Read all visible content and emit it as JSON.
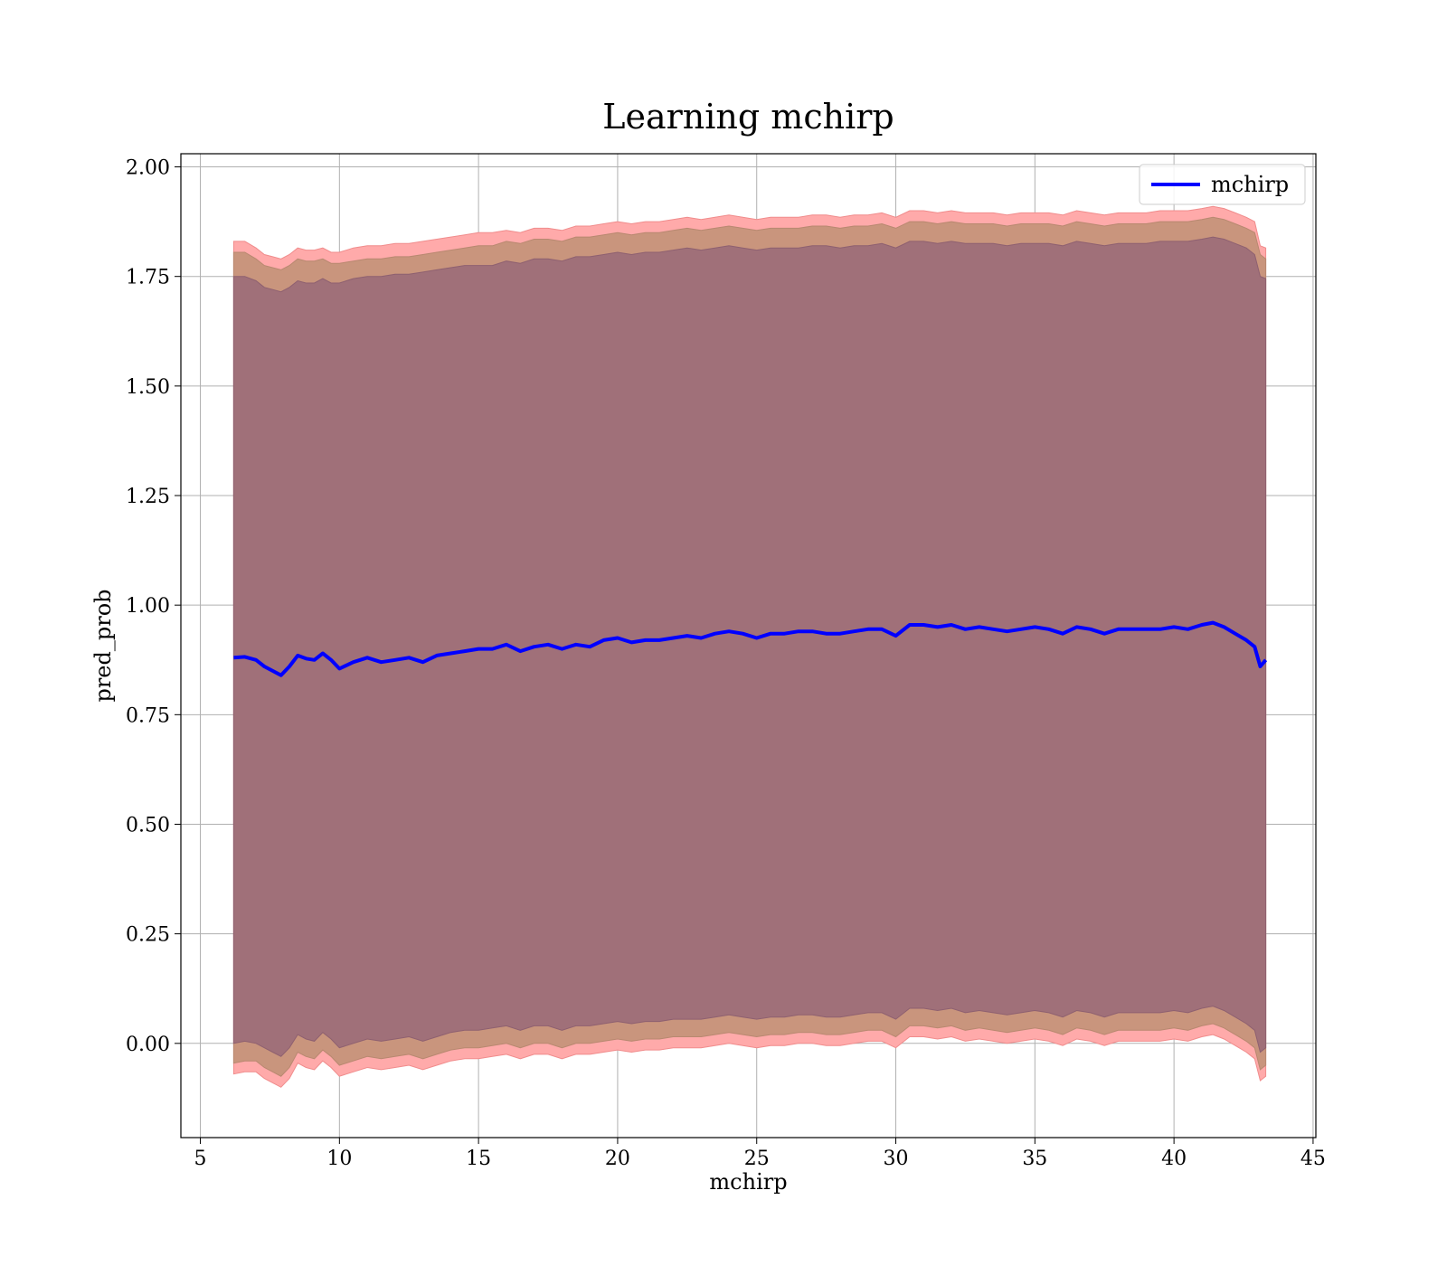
{
  "chart_data": {
    "type": "line",
    "title": "Learning mchirp",
    "xlabel": "mchirp",
    "ylabel": "pred_prob",
    "xlim": [
      4.3,
      45.1
    ],
    "ylim": [
      -0.215,
      2.03
    ],
    "xticks": [
      5,
      10,
      15,
      20,
      25,
      30,
      35,
      40,
      45
    ],
    "yticks": [
      0.0,
      0.25,
      0.5,
      0.75,
      1.0,
      1.25,
      1.5,
      1.75,
      2.0
    ],
    "ytick_labels": [
      "0.00",
      "0.25",
      "0.50",
      "0.75",
      "1.00",
      "1.25",
      "1.50",
      "1.75",
      "2.00"
    ],
    "grid": true,
    "legend": {
      "placement": "top-right",
      "entries": [
        "mchirp"
      ]
    },
    "series": [
      {
        "name": "mchirp",
        "color": "#0000ff",
        "x": [
          6.2,
          6.6,
          7.0,
          7.3,
          7.6,
          7.9,
          8.2,
          8.5,
          8.8,
          9.1,
          9.4,
          9.7,
          10.0,
          10.5,
          11.0,
          11.5,
          12.0,
          12.5,
          13.0,
          13.5,
          14.0,
          14.5,
          15.0,
          15.5,
          16.0,
          16.5,
          17.0,
          17.5,
          18.0,
          18.5,
          19.0,
          19.5,
          20.0,
          20.5,
          21.0,
          21.5,
          22.0,
          22.5,
          23.0,
          23.5,
          24.0,
          24.5,
          25.0,
          25.5,
          26.0,
          26.5,
          27.0,
          27.5,
          28.0,
          28.5,
          29.0,
          29.5,
          30.0,
          30.5,
          31.0,
          31.5,
          32.0,
          32.5,
          33.0,
          33.5,
          34.0,
          34.5,
          35.0,
          35.5,
          36.0,
          36.5,
          37.0,
          37.5,
          38.0,
          38.5,
          39.0,
          39.5,
          40.0,
          40.5,
          41.0,
          41.4,
          41.8,
          42.2,
          42.6,
          42.9,
          43.1,
          43.3
        ],
        "mean": [
          0.88,
          0.882,
          0.875,
          0.86,
          0.85,
          0.84,
          0.86,
          0.885,
          0.878,
          0.875,
          0.89,
          0.875,
          0.855,
          0.87,
          0.88,
          0.87,
          0.875,
          0.88,
          0.87,
          0.885,
          0.89,
          0.895,
          0.9,
          0.9,
          0.91,
          0.895,
          0.905,
          0.91,
          0.9,
          0.91,
          0.905,
          0.92,
          0.925,
          0.915,
          0.92,
          0.92,
          0.925,
          0.93,
          0.925,
          0.935,
          0.94,
          0.935,
          0.925,
          0.935,
          0.935,
          0.94,
          0.94,
          0.935,
          0.935,
          0.94,
          0.945,
          0.945,
          0.93,
          0.955,
          0.955,
          0.95,
          0.955,
          0.945,
          0.95,
          0.945,
          0.94,
          0.945,
          0.95,
          0.945,
          0.935,
          0.95,
          0.945,
          0.935,
          0.945,
          0.945,
          0.945,
          0.945,
          0.95,
          0.945,
          0.955,
          0.96,
          0.95,
          0.935,
          0.92,
          0.905,
          0.86,
          0.875
        ],
        "band_inner_upper": [
          1.805,
          1.805,
          1.79,
          1.775,
          1.77,
          1.765,
          1.775,
          1.79,
          1.785,
          1.785,
          1.79,
          1.78,
          1.78,
          1.785,
          1.79,
          1.79,
          1.795,
          1.795,
          1.8,
          1.805,
          1.81,
          1.815,
          1.82,
          1.82,
          1.83,
          1.825,
          1.835,
          1.835,
          1.83,
          1.84,
          1.84,
          1.845,
          1.85,
          1.845,
          1.85,
          1.85,
          1.855,
          1.86,
          1.855,
          1.86,
          1.865,
          1.86,
          1.855,
          1.86,
          1.86,
          1.86,
          1.865,
          1.865,
          1.86,
          1.865,
          1.865,
          1.87,
          1.86,
          1.875,
          1.875,
          1.87,
          1.875,
          1.87,
          1.87,
          1.87,
          1.865,
          1.87,
          1.87,
          1.87,
          1.865,
          1.875,
          1.87,
          1.865,
          1.87,
          1.87,
          1.87,
          1.875,
          1.875,
          1.875,
          1.88,
          1.885,
          1.88,
          1.87,
          1.86,
          1.85,
          1.8,
          1.79
        ],
        "band_inner_lower": [
          -0.045,
          -0.04,
          -0.04,
          -0.055,
          -0.065,
          -0.075,
          -0.055,
          -0.02,
          -0.03,
          -0.035,
          -0.015,
          -0.03,
          -0.05,
          -0.04,
          -0.03,
          -0.035,
          -0.03,
          -0.025,
          -0.035,
          -0.025,
          -0.015,
          -0.01,
          -0.01,
          -0.005,
          0.0,
          -0.01,
          0.0,
          0.0,
          -0.01,
          0.0,
          0.0,
          0.005,
          0.01,
          0.005,
          0.01,
          0.01,
          0.015,
          0.015,
          0.015,
          0.02,
          0.025,
          0.02,
          0.015,
          0.02,
          0.02,
          0.025,
          0.025,
          0.02,
          0.02,
          0.025,
          0.03,
          0.03,
          0.015,
          0.04,
          0.04,
          0.035,
          0.04,
          0.03,
          0.035,
          0.03,
          0.025,
          0.03,
          0.035,
          0.03,
          0.02,
          0.035,
          0.03,
          0.02,
          0.03,
          0.03,
          0.03,
          0.03,
          0.035,
          0.03,
          0.04,
          0.045,
          0.035,
          0.02,
          0.005,
          -0.01,
          -0.06,
          -0.05
        ],
        "band_outer_upper": [
          1.83,
          1.83,
          1.815,
          1.8,
          1.795,
          1.79,
          1.8,
          1.815,
          1.81,
          1.81,
          1.815,
          1.805,
          1.805,
          1.815,
          1.82,
          1.82,
          1.825,
          1.825,
          1.83,
          1.835,
          1.84,
          1.845,
          1.85,
          1.85,
          1.855,
          1.85,
          1.86,
          1.86,
          1.855,
          1.865,
          1.865,
          1.87,
          1.875,
          1.87,
          1.875,
          1.875,
          1.88,
          1.885,
          1.88,
          1.885,
          1.89,
          1.885,
          1.88,
          1.885,
          1.885,
          1.885,
          1.89,
          1.89,
          1.885,
          1.89,
          1.89,
          1.895,
          1.885,
          1.9,
          1.9,
          1.895,
          1.9,
          1.895,
          1.895,
          1.895,
          1.89,
          1.895,
          1.895,
          1.895,
          1.89,
          1.9,
          1.895,
          1.89,
          1.895,
          1.895,
          1.895,
          1.9,
          1.9,
          1.9,
          1.905,
          1.91,
          1.905,
          1.895,
          1.885,
          1.875,
          1.82,
          1.815
        ],
        "band_outer_lower": [
          -0.07,
          -0.065,
          -0.065,
          -0.08,
          -0.09,
          -0.1,
          -0.08,
          -0.045,
          -0.055,
          -0.06,
          -0.04,
          -0.055,
          -0.075,
          -0.065,
          -0.055,
          -0.06,
          -0.055,
          -0.05,
          -0.06,
          -0.05,
          -0.04,
          -0.035,
          -0.035,
          -0.03,
          -0.025,
          -0.035,
          -0.025,
          -0.025,
          -0.035,
          -0.025,
          -0.025,
          -0.02,
          -0.015,
          -0.02,
          -0.015,
          -0.015,
          -0.01,
          -0.01,
          -0.01,
          -0.005,
          0.0,
          -0.005,
          -0.01,
          -0.005,
          -0.005,
          0.0,
          0.0,
          -0.005,
          -0.005,
          0.0,
          0.005,
          0.005,
          -0.01,
          0.015,
          0.015,
          0.01,
          0.015,
          0.005,
          0.01,
          0.005,
          0.0,
          0.005,
          0.01,
          0.005,
          -0.005,
          0.01,
          0.005,
          -0.005,
          0.005,
          0.005,
          0.005,
          0.005,
          0.01,
          0.005,
          0.015,
          0.02,
          0.01,
          -0.005,
          -0.02,
          -0.035,
          -0.085,
          -0.075
        ],
        "band_full_upper": [
          1.75,
          1.75,
          1.74,
          1.725,
          1.72,
          1.715,
          1.725,
          1.74,
          1.735,
          1.735,
          1.745,
          1.735,
          1.735,
          1.745,
          1.75,
          1.75,
          1.755,
          1.755,
          1.76,
          1.765,
          1.77,
          1.775,
          1.775,
          1.775,
          1.785,
          1.78,
          1.79,
          1.79,
          1.785,
          1.795,
          1.795,
          1.8,
          1.805,
          1.8,
          1.805,
          1.805,
          1.81,
          1.815,
          1.81,
          1.815,
          1.82,
          1.815,
          1.81,
          1.815,
          1.815,
          1.815,
          1.82,
          1.82,
          1.815,
          1.82,
          1.82,
          1.825,
          1.815,
          1.83,
          1.83,
          1.825,
          1.83,
          1.825,
          1.825,
          1.825,
          1.82,
          1.825,
          1.825,
          1.825,
          1.82,
          1.83,
          1.825,
          1.82,
          1.825,
          1.825,
          1.825,
          1.83,
          1.83,
          1.83,
          1.835,
          1.84,
          1.835,
          1.825,
          1.815,
          1.8,
          1.75,
          1.745
        ],
        "band_full_lower": [
          0.0,
          0.005,
          0.0,
          -0.01,
          -0.02,
          -0.03,
          -0.01,
          0.02,
          0.01,
          0.005,
          0.025,
          0.01,
          -0.01,
          0.0,
          0.01,
          0.005,
          0.01,
          0.015,
          0.005,
          0.015,
          0.025,
          0.03,
          0.03,
          0.035,
          0.04,
          0.03,
          0.04,
          0.04,
          0.03,
          0.04,
          0.04,
          0.045,
          0.05,
          0.045,
          0.05,
          0.05,
          0.055,
          0.055,
          0.055,
          0.06,
          0.065,
          0.06,
          0.055,
          0.06,
          0.06,
          0.065,
          0.065,
          0.06,
          0.06,
          0.065,
          0.07,
          0.07,
          0.055,
          0.08,
          0.08,
          0.075,
          0.08,
          0.07,
          0.075,
          0.07,
          0.065,
          0.07,
          0.075,
          0.07,
          0.06,
          0.075,
          0.07,
          0.06,
          0.07,
          0.07,
          0.07,
          0.07,
          0.075,
          0.07,
          0.08,
          0.085,
          0.075,
          0.06,
          0.045,
          0.03,
          -0.02,
          -0.01
        ]
      }
    ],
    "band_colors": {
      "outer": "#ffaaaa",
      "middle": "#c9957d",
      "inner": "#a07079",
      "mean_line": "#0000ff"
    }
  }
}
